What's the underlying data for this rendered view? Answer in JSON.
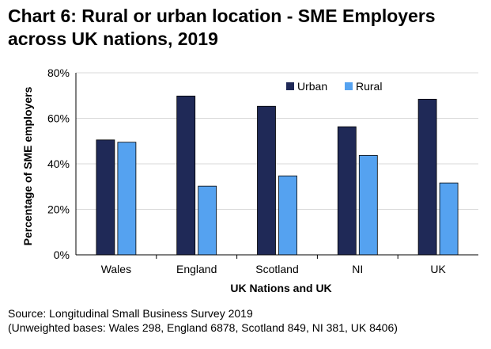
{
  "chart_data": {
    "type": "bar",
    "title": "Chart 6: Rural or urban location - SME Employers across UK nations, 2019",
    "title_lines": [
      "Chart 6: Rural or urban location - SME Employers",
      "across UK nations, 2019"
    ],
    "categories": [
      "Wales",
      "England",
      "Scotland",
      "NI",
      "UK"
    ],
    "series": [
      {
        "name": "Urban",
        "values": [
          50.5,
          69.8,
          65.3,
          56.3,
          68.4
        ],
        "color": "#1f2957"
      },
      {
        "name": "Rural",
        "values": [
          49.5,
          30.2,
          34.7,
          43.7,
          31.6
        ],
        "color": "#55a2f0"
      }
    ],
    "xlabel": "UK Nations and UK",
    "ylabel": "Percentage of SME employers",
    "ylim": [
      0,
      80
    ],
    "yticks": [
      0,
      20,
      40,
      60,
      80
    ],
    "ytick_labels": [
      "0%",
      "20%",
      "40%",
      "60%",
      "80%"
    ],
    "grid": true,
    "legend_position": "top-right"
  },
  "source": {
    "line1": "Source: Longitudinal Small Business Survey 2019",
    "line2": "(Unweighted bases: Wales 298, England 6878, Scotland 849, NI 381, UK 8406)"
  }
}
